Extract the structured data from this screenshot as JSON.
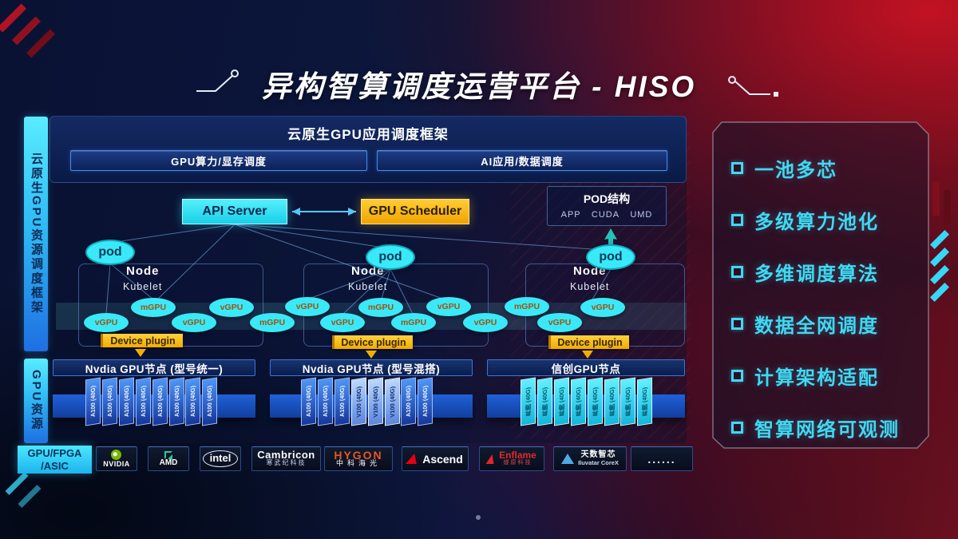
{
  "title": "异构智算调度运营平台 - HISO",
  "left_rails": {
    "top": "云原生GPU资源调度框架",
    "bottom": "GPU资源"
  },
  "framework": {
    "title": "云原生GPU应用调度框架",
    "left_bar": "GPU算力/显存调度",
    "right_bar": "AI应用/数据调度"
  },
  "control": {
    "api_server": "API Server",
    "gpu_scheduler": "GPU Scheduler"
  },
  "pod_struct": {
    "title": "POD结构",
    "items": [
      "APP",
      "CUDA",
      "UMD"
    ]
  },
  "node": {
    "label": "Node",
    "kubelet": "Kubelet",
    "pod": "pod"
  },
  "gpu_units": [
    "vGPU",
    "mGPU",
    "vGPU",
    "vGPU",
    "mGPU",
    "vGPU",
    "vGPU",
    "mGPU",
    "mGPU",
    "vGPU",
    "vGPU",
    "mGPU",
    "vGPU",
    "vGPU"
  ],
  "device_plugin_label": "Device plugin",
  "node_groups": [
    {
      "label": "Nvdia GPU节点 (型号统一)",
      "cards": [
        {
          "label": "A100 (40G)",
          "variant": "blue"
        },
        {
          "label": "A100 (40G)",
          "variant": "blue"
        },
        {
          "label": "A100 (40G)",
          "variant": "blue"
        },
        {
          "label": "A100 (40G)",
          "variant": "blue"
        },
        {
          "label": "A100 (40G)",
          "variant": "blue"
        },
        {
          "label": "A100 (40G)",
          "variant": "blue"
        },
        {
          "label": "A100 (40G)",
          "variant": "blue"
        },
        {
          "label": "A100 (40G)",
          "variant": "blue"
        }
      ]
    },
    {
      "label": "Nvdia GPU节点 (型号混搭)",
      "cards": [
        {
          "label": "A100 (40G)",
          "variant": "blue"
        },
        {
          "label": "A100 (40G)",
          "variant": "blue"
        },
        {
          "label": "A100 (40G)",
          "variant": "blue"
        },
        {
          "label": "V100 (40G)",
          "variant": "light"
        },
        {
          "label": "V100 (40G)",
          "variant": "light"
        },
        {
          "label": "V100 (40G)",
          "variant": "light"
        },
        {
          "label": "A100 (40G)",
          "variant": "blue"
        },
        {
          "label": "A100 (40G)",
          "variant": "blue"
        }
      ]
    },
    {
      "label": "信创GPU节点",
      "cards": [
        {
          "label": "昇腾 (40G)",
          "variant": "cyan"
        },
        {
          "label": "昇腾 (40G)",
          "variant": "cyan"
        },
        {
          "label": "昇腾 (40G)",
          "variant": "cyan"
        },
        {
          "label": "昇腾 (40G)",
          "variant": "cyan"
        },
        {
          "label": "昇腾 (40G)",
          "variant": "cyan"
        },
        {
          "label": "昇腾 (40G)",
          "variant": "cyan"
        },
        {
          "label": "昇腾 (40G)",
          "variant": "cyan"
        },
        {
          "label": "昇腾 (40G)",
          "variant": "cyan"
        }
      ]
    }
  ],
  "vendor_bar": {
    "label_line1": "GPU/FPGA",
    "label_line2": "/ASIC",
    "vendors": [
      {
        "type": "nvidia",
        "name": "NVIDIA"
      },
      {
        "type": "amd",
        "name": "AMD"
      },
      {
        "type": "intel",
        "name": "intel"
      },
      {
        "type": "cambricon",
        "name": "Cambricon",
        "sub": "寒武纪科技"
      },
      {
        "type": "hygon",
        "name": "HYGON",
        "sub": "中科海光"
      },
      {
        "type": "ascend",
        "name": "Ascend"
      },
      {
        "type": "enflame",
        "name": "Enflame",
        "sub": "燧原科技"
      },
      {
        "type": "iluvatar",
        "name": "天数智芯",
        "sub": "Iluvatar CoreX"
      },
      {
        "type": "dots",
        "name": "......"
      }
    ]
  },
  "features": [
    "一池多芯",
    "多级算力池化",
    "多维调度算法",
    "数据全网调度",
    "计算架构适配",
    "智算网络可观测"
  ],
  "colors": {
    "accent_cyan": "#3fd9f2",
    "accent_yellow": "#f2ab00",
    "accent_red": "#c01525",
    "card_blue": "#16379a"
  }
}
